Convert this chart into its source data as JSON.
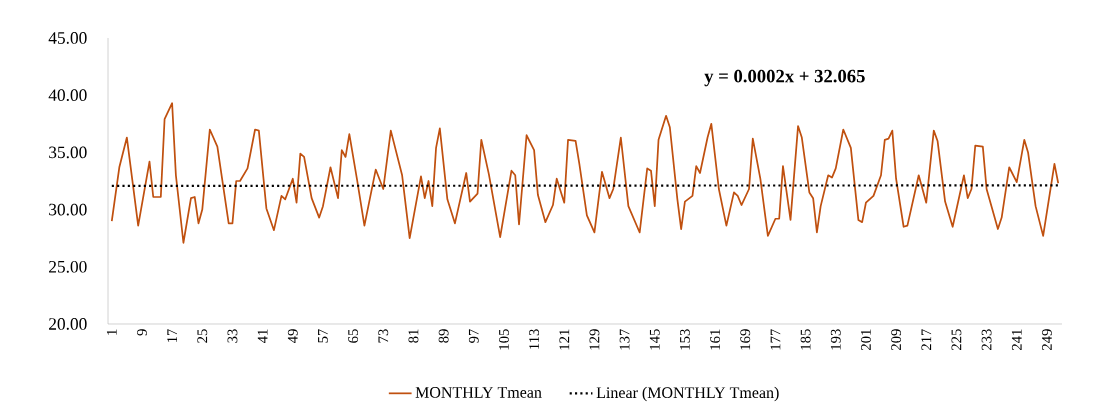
{
  "chart_data": {
    "type": "line",
    "xlim": [
      0,
      253
    ],
    "ylim": [
      20,
      45
    ],
    "xticks": [
      1,
      9,
      17,
      25,
      33,
      41,
      49,
      57,
      65,
      73,
      81,
      89,
      97,
      105,
      113,
      121,
      129,
      137,
      145,
      153,
      161,
      169,
      177,
      185,
      193,
      201,
      209,
      217,
      225,
      233,
      241,
      249
    ],
    "yticks": [
      {
        "value": 20,
        "label": "20.00"
      },
      {
        "value": 25,
        "label": "25.00"
      },
      {
        "value": 30,
        "label": "30.00"
      },
      {
        "value": 35,
        "label": "35.00"
      },
      {
        "value": 40,
        "label": "40.00"
      },
      {
        "value": 45,
        "label": "45.00"
      }
    ],
    "legend": "bottom",
    "marker": "none",
    "annotations": [
      "y = 0.0002x + 32.065"
    ],
    "series": [
      {
        "name": "MONTHLY Tmean",
        "color": "#c0500f",
        "line_style": "solid",
        "x": [
          1,
          3,
          5,
          8,
          11,
          12,
          14,
          15,
          17,
          18,
          20,
          22,
          23,
          24,
          25,
          27,
          29,
          32,
          33,
          34,
          35,
          37,
          39,
          40,
          42,
          44,
          46,
          47,
          49,
          50,
          51,
          52,
          54,
          56,
          57,
          59,
          61,
          62,
          63,
          64,
          66,
          68,
          71,
          73,
          75,
          78,
          80,
          83,
          84,
          85,
          86,
          87,
          88,
          90,
          92,
          95,
          96,
          98,
          99,
          101,
          104,
          107,
          108,
          109,
          111,
          113,
          114,
          116,
          118,
          119,
          121,
          122,
          124,
          125,
          127,
          129,
          131,
          133,
          134,
          136,
          138,
          141,
          143,
          144,
          145,
          146,
          148,
          149,
          151,
          152,
          153,
          155,
          156,
          157,
          159,
          160,
          162,
          164,
          166,
          167,
          168,
          170,
          171,
          173,
          175,
          177,
          178,
          179,
          181,
          183,
          184,
          186,
          187,
          188,
          189,
          191,
          192,
          193,
          195,
          197,
          199,
          200,
          201,
          203,
          205,
          206,
          207,
          208,
          209,
          211,
          212,
          215,
          217,
          219,
          220,
          222,
          224,
          227,
          228,
          229,
          230,
          232,
          233,
          236,
          237,
          239,
          241,
          243,
          244,
          246,
          248,
          251,
          252
        ],
        "values": [
          29.0,
          33.7,
          36.3,
          28.6,
          34.2,
          31.1,
          31.1,
          37.9,
          39.3,
          33.0,
          27.1,
          31.0,
          31.1,
          28.8,
          30.0,
          37.0,
          35.5,
          28.8,
          28.8,
          32.5,
          32.5,
          33.6,
          37.0,
          36.9,
          30.1,
          28.2,
          31.2,
          30.9,
          32.7,
          30.6,
          34.9,
          34.6,
          31.0,
          29.3,
          30.3,
          33.7,
          31.0,
          35.2,
          34.6,
          36.6,
          32.7,
          28.6,
          33.5,
          31.8,
          36.9,
          33.0,
          27.5,
          32.9,
          31.0,
          32.5,
          30.3,
          35.4,
          37.1,
          30.9,
          28.8,
          33.2,
          30.7,
          31.4,
          36.1,
          33.1,
          27.6,
          33.4,
          33.0,
          28.7,
          36.5,
          35.2,
          31.3,
          28.9,
          30.4,
          32.7,
          30.6,
          36.1,
          36.0,
          34.0,
          29.5,
          28.0,
          33.3,
          31.0,
          31.8,
          36.3,
          30.3,
          28.0,
          33.6,
          33.4,
          30.3,
          36.1,
          38.2,
          37.2,
          30.9,
          28.3,
          30.7,
          31.2,
          33.8,
          33.2,
          36.3,
          37.5,
          31.8,
          28.6,
          31.5,
          31.2,
          30.4,
          31.8,
          36.2,
          32.7,
          27.7,
          29.2,
          29.2,
          33.8,
          29.1,
          37.3,
          36.3,
          31.5,
          31.0,
          28.0,
          30.3,
          33.0,
          32.8,
          33.6,
          37.0,
          35.4,
          29.1,
          28.9,
          30.6,
          31.2,
          33.0,
          36.1,
          36.2,
          36.9,
          32.7,
          28.5,
          28.6,
          33.0,
          30.6,
          36.9,
          36.0,
          30.7,
          28.5,
          33.0,
          31.0,
          31.8,
          35.6,
          35.5,
          31.8,
          28.3,
          29.3,
          33.7,
          32.4,
          36.1,
          35.0,
          30.3,
          27.7,
          34.0,
          32.3
        ]
      },
      {
        "name": "Linear (MONTHLY Tmean)",
        "type": "line",
        "color": "#000000",
        "line_style": "dotted",
        "x": [
          1,
          252
        ],
        "values": [
          32.07,
          32.12
        ]
      }
    ]
  }
}
